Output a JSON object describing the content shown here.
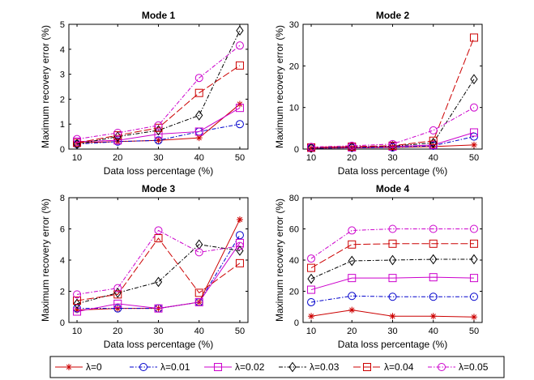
{
  "chart_data": [
    {
      "type": "line",
      "title": "Mode 1",
      "xlabel": "Data loss percentage (%)",
      "ylabel": "Maximum recovery error (%)",
      "x": [
        10,
        20,
        30,
        40,
        50
      ],
      "xlim": [
        8,
        52
      ],
      "ylim": [
        0,
        5
      ],
      "yticks": [
        0,
        1,
        2,
        3,
        4,
        5
      ],
      "series": [
        {
          "name": "λ=0",
          "values": [
            0.25,
            0.3,
            0.35,
            0.45,
            1.8
          ]
        },
        {
          "name": "λ=0.01",
          "values": [
            0.2,
            0.3,
            0.35,
            0.7,
            1.0
          ]
        },
        {
          "name": "λ=0.02",
          "values": [
            0.3,
            0.35,
            0.6,
            0.7,
            1.65
          ]
        },
        {
          "name": "λ=0.03",
          "values": [
            0.2,
            0.5,
            0.75,
            1.35,
            4.75
          ]
        },
        {
          "name": "λ=0.04",
          "values": [
            0.25,
            0.55,
            0.85,
            2.25,
            3.35
          ]
        },
        {
          "name": "λ=0.05",
          "values": [
            0.4,
            0.65,
            0.95,
            2.85,
            4.15
          ]
        }
      ]
    },
    {
      "type": "line",
      "title": "Mode 2",
      "xlabel": "Data loss percentage (%)",
      "ylabel": "Maximum recovery error (%)",
      "x": [
        10,
        20,
        30,
        40,
        50
      ],
      "xlim": [
        8,
        52
      ],
      "ylim": [
        0,
        30
      ],
      "yticks": [
        0,
        10,
        20,
        30
      ],
      "series": [
        {
          "name": "λ=0",
          "values": [
            0.2,
            0.3,
            0.4,
            0.6,
            1.0
          ]
        },
        {
          "name": "λ=0.01",
          "values": [
            0.2,
            0.3,
            0.4,
            0.8,
            3.0
          ]
        },
        {
          "name": "λ=0.02",
          "values": [
            0.3,
            0.4,
            0.6,
            1.0,
            4.0
          ]
        },
        {
          "name": "λ=0.03",
          "values": [
            0.3,
            0.5,
            0.7,
            1.5,
            16.8
          ]
        },
        {
          "name": "λ=0.04",
          "values": [
            0.4,
            0.6,
            0.8,
            2.0,
            26.8
          ]
        },
        {
          "name": "λ=0.05",
          "values": [
            0.5,
            0.8,
            1.2,
            4.5,
            10.0
          ]
        }
      ]
    },
    {
      "type": "line",
      "title": "Mode 3",
      "xlabel": "Data loss percentage (%)",
      "ylabel": "Maximum recovery error (%)",
      "x": [
        10,
        20,
        30,
        40,
        50
      ],
      "xlim": [
        8,
        52
      ],
      "ylim": [
        0,
        8
      ],
      "yticks": [
        0,
        2,
        4,
        6,
        8
      ],
      "series": [
        {
          "name": "λ=0",
          "values": [
            0.8,
            0.9,
            0.9,
            1.3,
            6.6
          ]
        },
        {
          "name": "λ=0.01",
          "values": [
            0.9,
            0.9,
            0.9,
            1.3,
            5.6
          ]
        },
        {
          "name": "λ=0.02",
          "values": [
            0.7,
            1.2,
            0.9,
            1.3,
            5.1
          ]
        },
        {
          "name": "λ=0.03",
          "values": [
            1.2,
            1.9,
            2.6,
            5.0,
            4.6
          ]
        },
        {
          "name": "λ=0.04",
          "values": [
            1.4,
            1.8,
            5.4,
            1.9,
            3.8
          ]
        },
        {
          "name": "λ=0.05",
          "values": [
            1.8,
            2.2,
            5.9,
            4.5,
            4.9
          ]
        }
      ]
    },
    {
      "type": "line",
      "title": "Mode 4",
      "xlabel": "Data loss percentage (%)",
      "ylabel": "Maximum recovery error (%)",
      "x": [
        10,
        20,
        30,
        40,
        50
      ],
      "xlim": [
        8,
        52
      ],
      "ylim": [
        0,
        80
      ],
      "yticks": [
        0,
        20,
        40,
        60,
        80
      ],
      "series": [
        {
          "name": "λ=0",
          "values": [
            4,
            8,
            4,
            4,
            3.5
          ]
        },
        {
          "name": "λ=0.01",
          "values": [
            13,
            17,
            16.5,
            16.5,
            16.5
          ]
        },
        {
          "name": "λ=0.02",
          "values": [
            21,
            28.5,
            28.5,
            29,
            28.5
          ]
        },
        {
          "name": "λ=0.03",
          "values": [
            28,
            39.5,
            40,
            40.5,
            40.5
          ]
        },
        {
          "name": "λ=0.04",
          "values": [
            35,
            50,
            50.5,
            50.5,
            50.5
          ]
        },
        {
          "name": "λ=0.05",
          "values": [
            41,
            59,
            60,
            60,
            60
          ]
        }
      ]
    }
  ],
  "legend": {
    "placement": "bottom",
    "entries": [
      "λ=0",
      "λ=0.01",
      "λ=0.02",
      "λ=0.03",
      "λ=0.04",
      "λ=0.05"
    ]
  },
  "styles": [
    {
      "color": "#cc0000",
      "dash": "",
      "marker": "star"
    },
    {
      "color": "#0000cc",
      "dash": "5,2,1.5,2",
      "marker": "circle"
    },
    {
      "color": "#cc00cc",
      "dash": "",
      "marker": "square"
    },
    {
      "color": "#000000",
      "dash": "5,2,1.5,2",
      "marker": "diamond"
    },
    {
      "color": "#cc0000",
      "dash": "9,3",
      "marker": "square"
    },
    {
      "color": "#cc00cc",
      "dash": "5,2,1.5,2",
      "marker": "circle"
    }
  ]
}
